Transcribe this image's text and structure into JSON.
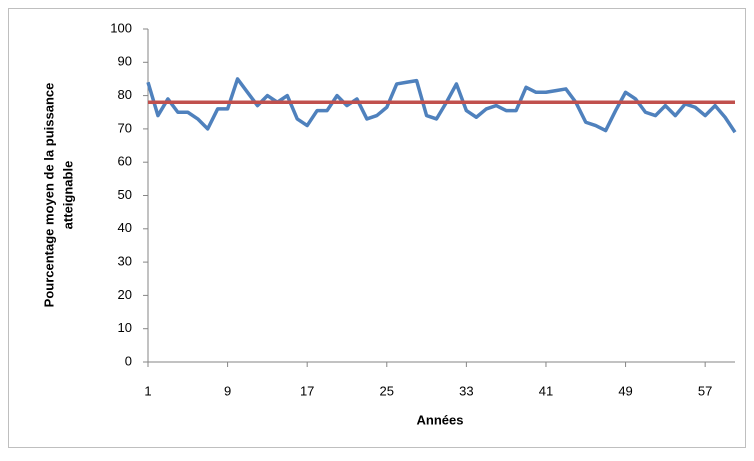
{
  "chart_data": {
    "type": "line",
    "xlabel": "Années",
    "ylabel": [
      "Pourcentage moyen de la puissance",
      "atteignable"
    ],
    "x": [
      1,
      2,
      3,
      4,
      5,
      6,
      7,
      8,
      9,
      10,
      11,
      12,
      13,
      14,
      15,
      16,
      17,
      18,
      19,
      20,
      21,
      22,
      23,
      24,
      25,
      26,
      27,
      28,
      29,
      30,
      31,
      32,
      33,
      34,
      35,
      36,
      37,
      38,
      39,
      40,
      41,
      42,
      43,
      44,
      45,
      46,
      47,
      48,
      49,
      50,
      51,
      52,
      53,
      54,
      55,
      56,
      57,
      58,
      59,
      60
    ],
    "series": [
      {
        "color": "#4f81bd",
        "values": [
          84,
          74,
          79,
          75,
          75,
          73,
          70,
          76,
          76,
          85,
          81,
          77,
          80,
          78,
          80,
          73,
          71,
          75.5,
          75.5,
          80,
          77,
          79,
          73,
          74,
          76.5,
          83.5,
          84,
          84.5,
          74,
          73,
          78,
          83.5,
          75.5,
          73.5,
          76,
          77,
          75.5,
          75.5,
          82.5,
          81,
          81,
          81.5,
          82,
          78,
          72,
          71,
          69.5,
          75.5,
          81,
          79,
          75,
          74,
          77,
          74,
          77.5,
          76.5,
          74,
          77,
          73.5,
          69
        ]
      },
      {
        "color": "#c0504d",
        "values": [
          78,
          78,
          78,
          78,
          78,
          78,
          78,
          78,
          78,
          78,
          78,
          78,
          78,
          78,
          78,
          78,
          78,
          78,
          78,
          78,
          78,
          78,
          78,
          78,
          78,
          78,
          78,
          78,
          78,
          78,
          78,
          78,
          78,
          78,
          78,
          78,
          78,
          78,
          78,
          78,
          78,
          78,
          78,
          78,
          78,
          78,
          78,
          78,
          78,
          78,
          78,
          78,
          78,
          78,
          78,
          78,
          78,
          78,
          78,
          78
        ]
      }
    ],
    "xlim": [
      1,
      60
    ],
    "xticks": [
      1,
      9,
      17,
      25,
      33,
      41,
      49,
      57
    ],
    "ylim": [
      0,
      100
    ],
    "yticks": [
      0,
      10,
      20,
      30,
      40,
      50,
      60,
      70,
      80,
      90,
      100
    ]
  }
}
